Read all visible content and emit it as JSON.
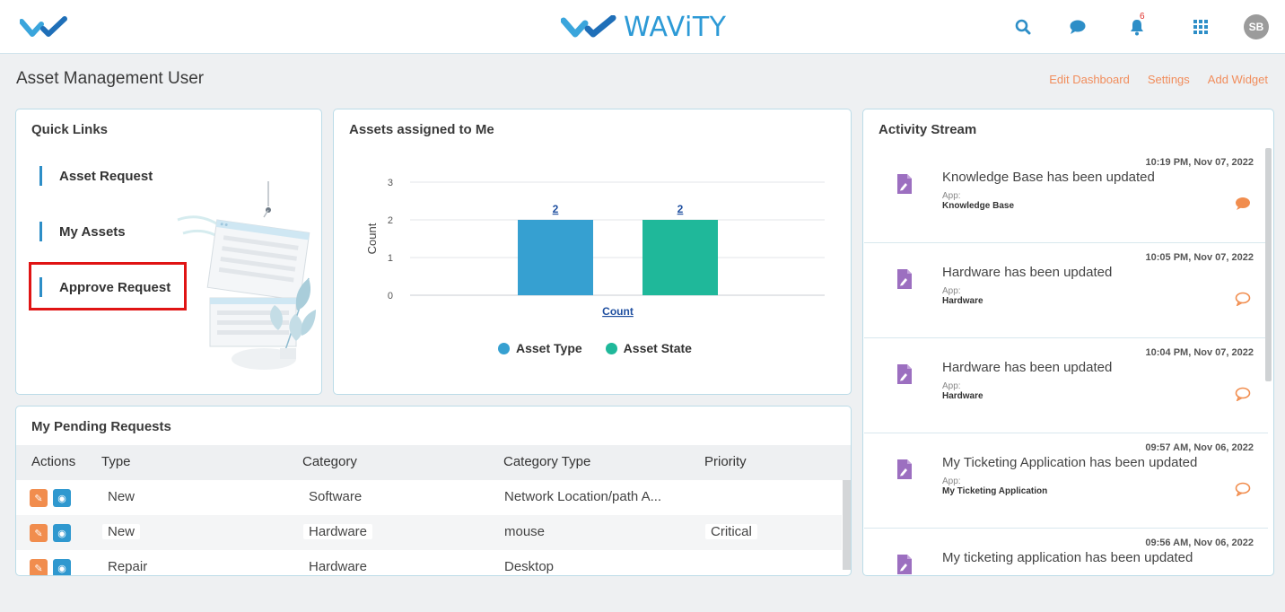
{
  "brand": {
    "name": "WAViTY"
  },
  "topbar": {
    "notification_count": "6",
    "avatar_initials": "SB"
  },
  "header": {
    "title": "Asset Management User",
    "links": [
      "Edit Dashboard",
      "Settings",
      "Add Widget"
    ]
  },
  "quick_links": {
    "title": "Quick Links",
    "items": [
      "Asset Request",
      "My Assets",
      "Approve Request"
    ]
  },
  "assets_chart": {
    "title": "Assets assigned to Me",
    "ylabel": "Count",
    "xlabel": "Count",
    "yticks": [
      "3",
      "2",
      "1",
      "0"
    ]
  },
  "chart_data": {
    "type": "bar",
    "categories": [
      "Count"
    ],
    "series": [
      {
        "name": "Asset Type",
        "values": [
          2
        ],
        "color": "#36a0d1"
      },
      {
        "name": "Asset State",
        "values": [
          2
        ],
        "color": "#1fb89a"
      }
    ],
    "xlabel": "Count",
    "ylabel": "Count",
    "ylim": [
      0,
      3
    ],
    "grid": true,
    "legend": "bottom"
  },
  "pending": {
    "title": "My Pending Requests",
    "columns": [
      "Actions",
      "Type",
      "Category",
      "Category Type",
      "Priority"
    ],
    "rows": [
      {
        "type": "New",
        "category": "Software",
        "category_type": "Network Location/path A...",
        "priority": ""
      },
      {
        "type": "New",
        "category": "Hardware",
        "category_type": "mouse",
        "priority": "Critical"
      },
      {
        "type": "Repair",
        "category": "Hardware",
        "category_type": "Desktop",
        "priority": ""
      }
    ]
  },
  "activity": {
    "title": "Activity Stream",
    "app_label": "App:",
    "items": [
      {
        "time": "10:19 PM, Nov 07, 2022",
        "text": "Knowledge Base has been updated",
        "app": "Knowledge Base",
        "has_comments": true
      },
      {
        "time": "10:05 PM, Nov 07, 2022",
        "text": "Hardware has been updated",
        "app": "Hardware",
        "has_comments": false
      },
      {
        "time": "10:04 PM, Nov 07, 2022",
        "text": "Hardware has been updated",
        "app": "Hardware",
        "has_comments": false
      },
      {
        "time": "09:57 AM, Nov 06, 2022",
        "text": "My Ticketing Application has been updated",
        "app": "My Ticketing Application",
        "has_comments": false
      },
      {
        "time": "09:56 AM, Nov 06, 2022",
        "text": "My ticketing application has been updated",
        "app": "",
        "has_comments": false
      }
    ]
  },
  "colors": {
    "accent": "#2d9ad6",
    "link": "#f18d5c",
    "edit": "#f18d4e",
    "view": "#2f98cf",
    "doc": "#9c6fc0",
    "highlight": "#e01414"
  }
}
